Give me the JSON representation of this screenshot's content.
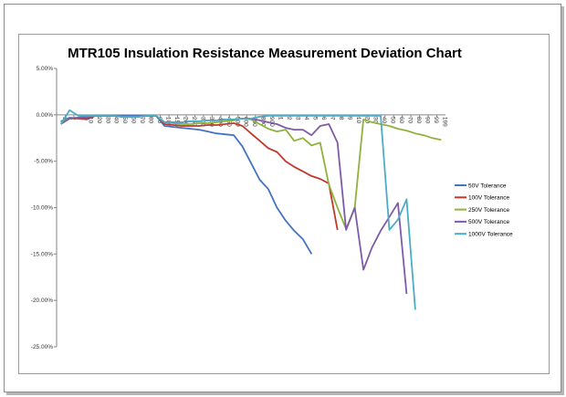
{
  "chart_data": {
    "type": "line",
    "title": "MTR105 Insulation Resistance Measurement Deviation Chart",
    "xlabel": "",
    "ylabel": "",
    "categories": [
      "1",
      "2",
      "5",
      "10",
      "20",
      "30",
      "40",
      "50",
      "60",
      "70",
      "80",
      "90",
      "100",
      "150",
      "200",
      "250",
      "300",
      "350",
      "400",
      "450",
      "500",
      "600",
      "700",
      "800",
      "900",
      "1",
      "2",
      "3",
      "4",
      "5",
      "6",
      "7",
      "8",
      "9",
      "10",
      "20",
      "30",
      "40",
      "50",
      "60",
      "70",
      "80",
      "90",
      "99",
      "199"
    ],
    "ylim": [
      -0.25,
      0.05
    ],
    "yticks": [
      "5.00%",
      "0.00%",
      "-5.00%",
      "-10.00%",
      "-15.00%",
      "-20.00%",
      "-25.00%"
    ],
    "grid": false,
    "legend_position": "right",
    "series": [
      {
        "name": "50V Tolerance",
        "color": "#4472C4",
        "values": [
          -0.007,
          -0.003,
          -0.004,
          -0.005,
          -0.001,
          -0.001,
          -0.001,
          -0.001,
          -0.001,
          -0.001,
          -0.001,
          -0.001,
          -0.012,
          -0.013,
          -0.014,
          -0.015,
          -0.016,
          -0.018,
          -0.02,
          -0.021,
          -0.022,
          -0.034,
          -0.052,
          -0.07,
          -0.08,
          -0.1,
          -0.114,
          -0.125,
          -0.134,
          -0.15,
          null,
          null,
          null,
          null,
          null,
          null,
          null,
          null,
          null,
          null,
          null,
          null,
          null,
          null,
          null
        ]
      },
      {
        "name": "100V Tolerance",
        "color": "#C0392B",
        "values": [
          -0.008,
          -0.004,
          -0.004,
          -0.004,
          -0.001,
          -0.001,
          -0.001,
          -0.002,
          -0.002,
          -0.002,
          -0.001,
          -0.001,
          -0.01,
          -0.011,
          -0.012,
          -0.012,
          -0.012,
          -0.011,
          -0.011,
          -0.01,
          -0.009,
          -0.012,
          -0.02,
          -0.028,
          -0.036,
          -0.04,
          -0.05,
          -0.056,
          -0.061,
          -0.066,
          -0.069,
          -0.074,
          -0.124,
          null,
          null,
          null,
          null,
          null,
          null,
          null,
          null,
          null,
          null,
          null,
          null
        ]
      },
      {
        "name": "250V Tolerance",
        "color": "#8DB33C",
        "values": [
          -0.008,
          -0.004,
          -0.003,
          -0.002,
          -0.001,
          -0.001,
          -0.001,
          -0.002,
          -0.002,
          -0.002,
          -0.001,
          -0.001,
          -0.008,
          -0.009,
          -0.01,
          -0.01,
          -0.009,
          -0.009,
          -0.008,
          -0.007,
          -0.006,
          -0.004,
          -0.005,
          -0.01,
          -0.015,
          -0.018,
          -0.016,
          -0.028,
          -0.025,
          -0.033,
          -0.03,
          -0.075,
          -0.1,
          -0.123,
          -0.1,
          -0.005,
          -0.008,
          -0.01,
          -0.012,
          -0.015,
          -0.017,
          -0.02,
          -0.022,
          -0.025,
          -0.027
        ]
      },
      {
        "name": "500V Tolerance",
        "color": "#7D5BA6",
        "values": [
          -0.01,
          -0.004,
          -0.003,
          -0.002,
          -0.001,
          -0.001,
          -0.001,
          -0.002,
          -0.002,
          -0.002,
          -0.001,
          -0.001,
          -0.008,
          -0.008,
          -0.008,
          -0.007,
          -0.007,
          -0.006,
          -0.006,
          -0.005,
          -0.005,
          -0.004,
          -0.004,
          -0.006,
          -0.008,
          -0.01,
          -0.014,
          -0.016,
          -0.016,
          -0.022,
          -0.012,
          -0.01,
          -0.03,
          -0.124,
          -0.1,
          -0.167,
          -0.143,
          -0.125,
          -0.11,
          -0.095,
          -0.193,
          null,
          null,
          null,
          null
        ]
      },
      {
        "name": "1000V Tolerance",
        "color": "#4BACC6",
        "values": [
          -0.01,
          0.005,
          -0.001,
          -0.001,
          -0.001,
          -0.001,
          -0.001,
          -0.002,
          -0.002,
          -0.002,
          -0.001,
          -0.001,
          -0.008,
          -0.008,
          -0.008,
          -0.007,
          -0.007,
          -0.006,
          -0.006,
          -0.005,
          -0.005,
          -0.004,
          -0.004,
          -0.002,
          -0.001,
          -0.001,
          -0.001,
          -0.001,
          -0.001,
          -0.001,
          -0.001,
          -0.001,
          -0.001,
          -0.001,
          -0.001,
          -0.001,
          -0.001,
          -0.001,
          -0.124,
          -0.113,
          -0.091,
          -0.21,
          null,
          null,
          null
        ]
      }
    ]
  }
}
